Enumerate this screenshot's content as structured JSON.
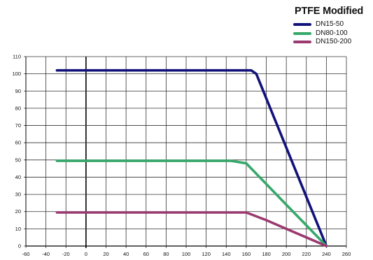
{
  "chart_data": {
    "type": "line",
    "title": "PTFE Modified",
    "xlabel": "",
    "ylabel": "",
    "xlim": [
      -60,
      260
    ],
    "ylim": [
      0,
      110
    ],
    "x_ticks": [
      -60,
      -40,
      -20,
      0,
      20,
      40,
      60,
      80,
      100,
      120,
      140,
      160,
      180,
      200,
      220,
      240,
      260
    ],
    "y_ticks": [
      0,
      10,
      20,
      30,
      40,
      50,
      60,
      70,
      80,
      90,
      100,
      110
    ],
    "grid": true,
    "legend_position": "top-right",
    "series": [
      {
        "name": "DN15-50",
        "color": "#12127a",
        "points": [
          [
            -29,
            102
          ],
          [
            165,
            102
          ],
          [
            170,
            100
          ],
          [
            240,
            0
          ]
        ]
      },
      {
        "name": "DN80-100",
        "color": "#36a86a",
        "points": [
          [
            -29,
            49.5
          ],
          [
            145,
            49.5
          ],
          [
            160,
            48
          ],
          [
            170,
            42
          ],
          [
            180,
            36
          ],
          [
            200,
            24
          ],
          [
            220,
            12
          ],
          [
            240,
            0
          ]
        ]
      },
      {
        "name": "DN150-200",
        "color": "#9a3a70",
        "points": [
          [
            -29,
            19.5
          ],
          [
            160,
            19.5
          ],
          [
            180,
            15
          ],
          [
            200,
            10
          ],
          [
            220,
            5
          ],
          [
            240,
            0
          ]
        ]
      }
    ]
  }
}
